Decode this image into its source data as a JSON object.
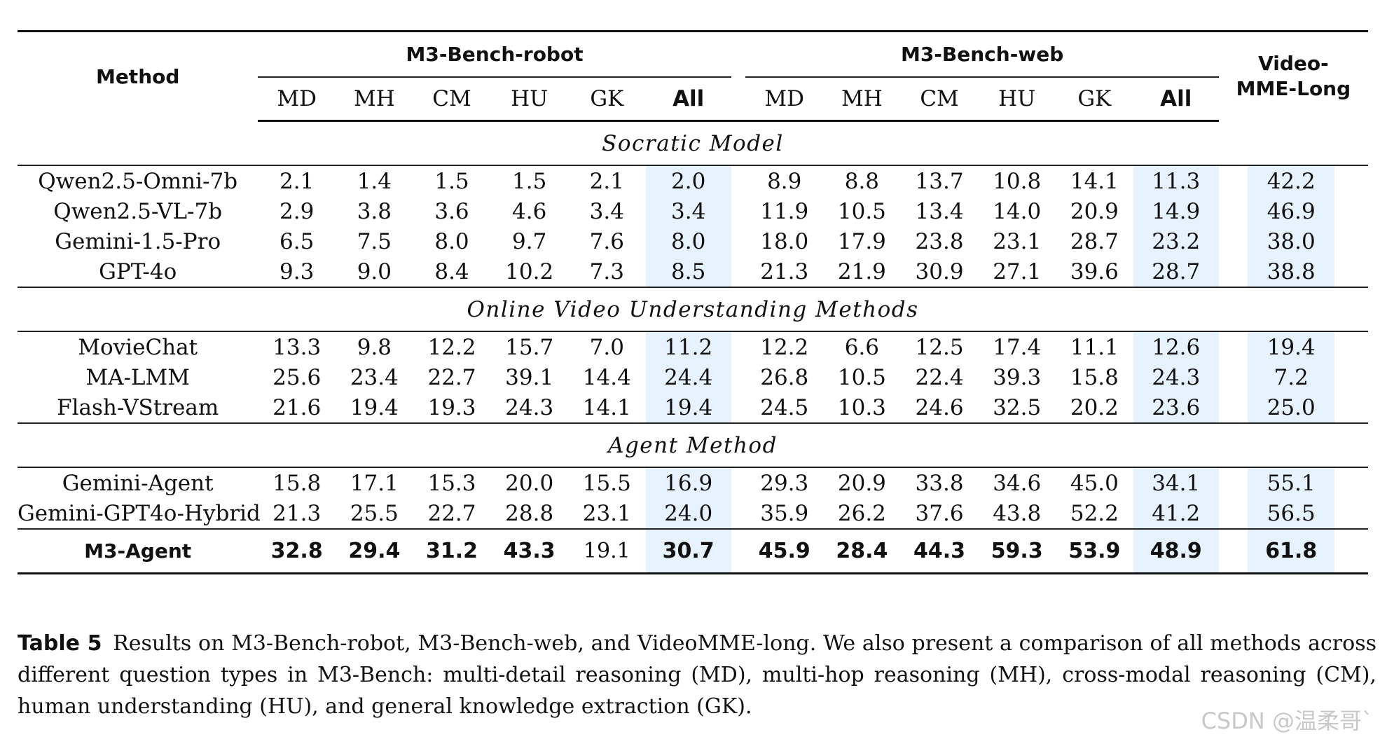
{
  "table": {
    "method_header": "Method",
    "groups": [
      "M3-Bench-robot",
      "M3-Bench-web"
    ],
    "video_header_line1": "Video-",
    "video_header_line2": "MME-Long",
    "subcols": [
      "MD",
      "MH",
      "CM",
      "HU",
      "GK",
      "All"
    ],
    "sections": [
      {
        "title": "Socratic Model",
        "rows": [
          {
            "name": "Qwen2.5-Omni-7b",
            "robot": [
              "2.1",
              "1.4",
              "1.5",
              "1.5",
              "2.1",
              "2.0"
            ],
            "web": [
              "8.9",
              "8.8",
              "13.7",
              "10.8",
              "14.1",
              "11.3"
            ],
            "video": "42.2"
          },
          {
            "name": "Qwen2.5-VL-7b",
            "robot": [
              "2.9",
              "3.8",
              "3.6",
              "4.6",
              "3.4",
              "3.4"
            ],
            "web": [
              "11.9",
              "10.5",
              "13.4",
              "14.0",
              "20.9",
              "14.9"
            ],
            "video": "46.9"
          },
          {
            "name": "Gemini-1.5-Pro",
            "robot": [
              "6.5",
              "7.5",
              "8.0",
              "9.7",
              "7.6",
              "8.0"
            ],
            "web": [
              "18.0",
              "17.9",
              "23.8",
              "23.1",
              "28.7",
              "23.2"
            ],
            "video": "38.0"
          },
          {
            "name": "GPT-4o",
            "robot": [
              "9.3",
              "9.0",
              "8.4",
              "10.2",
              "7.3",
              "8.5"
            ],
            "web": [
              "21.3",
              "21.9",
              "30.9",
              "27.1",
              "39.6",
              "28.7"
            ],
            "video": "38.8"
          }
        ]
      },
      {
        "title": "Online Video Understanding Methods",
        "rows": [
          {
            "name": "MovieChat",
            "robot": [
              "13.3",
              "9.8",
              "12.2",
              "15.7",
              "7.0",
              "11.2"
            ],
            "web": [
              "12.2",
              "6.6",
              "12.5",
              "17.4",
              "11.1",
              "12.6"
            ],
            "video": "19.4"
          },
          {
            "name": "MA-LMM",
            "robot": [
              "25.6",
              "23.4",
              "22.7",
              "39.1",
              "14.4",
              "24.4"
            ],
            "web": [
              "26.8",
              "10.5",
              "22.4",
              "39.3",
              "15.8",
              "24.3"
            ],
            "video": "7.2"
          },
          {
            "name": "Flash-VStream",
            "robot": [
              "21.6",
              "19.4",
              "19.3",
              "24.3",
              "14.1",
              "19.4"
            ],
            "web": [
              "24.5",
              "10.3",
              "24.6",
              "32.5",
              "20.2",
              "23.6"
            ],
            "video": "25.0"
          }
        ]
      },
      {
        "title": "Agent Method",
        "rows": [
          {
            "name": "Gemini-Agent",
            "robot": [
              "15.8",
              "17.1",
              "15.3",
              "20.0",
              "15.5",
              "16.9"
            ],
            "web": [
              "29.3",
              "20.9",
              "33.8",
              "34.6",
              "45.0",
              "34.1"
            ],
            "video": "55.1"
          },
          {
            "name": "Gemini-GPT4o-Hybrid",
            "robot": [
              "21.3",
              "25.5",
              "22.7",
              "28.8",
              "23.1",
              "24.0"
            ],
            "web": [
              "35.9",
              "26.2",
              "37.6",
              "43.8",
              "52.2",
              "41.2"
            ],
            "video": "56.5"
          }
        ]
      }
    ],
    "final_row": {
      "name": "M3-Agent",
      "robot": [
        "32.8",
        "29.4",
        "31.2",
        "43.3",
        "19.1",
        "30.7"
      ],
      "web": [
        "45.9",
        "28.4",
        "44.3",
        "59.3",
        "53.9",
        "48.9"
      ],
      "video": "61.8"
    }
  },
  "caption": {
    "label": "Table 5",
    "text": "Results on M3-Bench-robot, M3-Bench-web, and VideoMME-long. We also present a comparison of all methods across different question types in M3-Bench: multi-detail reasoning (MD), multi-hop reasoning (MH), cross-modal reasoning (CM), human understanding (HU), and general knowledge extraction (GK)."
  },
  "watermark": "CSDN @温柔哥`"
}
